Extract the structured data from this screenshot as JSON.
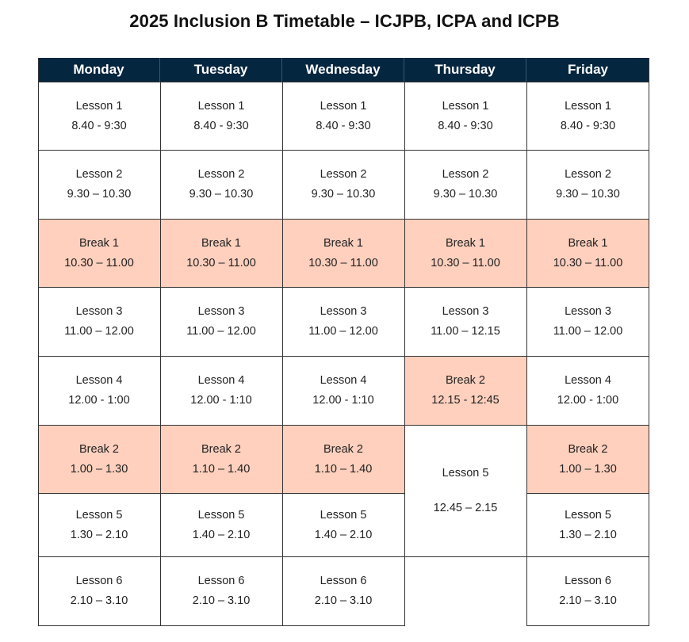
{
  "title": "2025 Inclusion B Timetable – ICJPB, ICPA and ICPB",
  "colors": {
    "header_bg": "#05263f",
    "header_text": "#ffffff",
    "break_bg": "#fed0bd",
    "grid_line": "#333333"
  },
  "days": [
    "Monday",
    "Tuesday",
    "Wednesday",
    "Thursday",
    "Friday"
  ],
  "monday": [
    {
      "name": "Lesson 1",
      "time": "8.40 - 9:30"
    },
    {
      "name": "Lesson 2",
      "time": "9.30 – 10.30"
    },
    {
      "name": "Break 1",
      "time": "10.30 – 11.00"
    },
    {
      "name": "Lesson 3",
      "time": "11.00 – 12.00"
    },
    {
      "name": "Lesson 4",
      "time": "12.00 - 1:00"
    },
    {
      "name": "Break 2",
      "time": "1.00 – 1.30"
    },
    {
      "name": "Lesson 5",
      "time": "1.30 – 2.10"
    },
    {
      "name": "Lesson 6",
      "time": "2.10 – 3.10"
    }
  ],
  "tuesday": [
    {
      "name": "Lesson 1",
      "time": "8.40 - 9:30"
    },
    {
      "name": "Lesson 2",
      "time": "9.30 – 10.30"
    },
    {
      "name": "Break 1",
      "time": "10.30 – 11.00"
    },
    {
      "name": "Lesson 3",
      "time": "11.00 – 12.00"
    },
    {
      "name": "Lesson 4",
      "time": "12.00 - 1:10"
    },
    {
      "name": "Break 2",
      "time": "1.10 – 1.40"
    },
    {
      "name": "Lesson 5",
      "time": "1.40 – 2.10"
    },
    {
      "name": "Lesson 6",
      "time": "2.10 – 3.10"
    }
  ],
  "wednesday": [
    {
      "name": "Lesson 1",
      "time": "8.40 - 9:30"
    },
    {
      "name": "Lesson 2",
      "time": "9.30 – 10.30"
    },
    {
      "name": "Break 1",
      "time": "10.30 – 11.00"
    },
    {
      "name": "Lesson 3",
      "time": "11.00 – 12.00"
    },
    {
      "name": "Lesson 4",
      "time": "12.00 - 1:10"
    },
    {
      "name": "Break 2",
      "time": "1.10 – 1.40"
    },
    {
      "name": "Lesson 5",
      "time": "1.40 – 2.10"
    },
    {
      "name": "Lesson 6",
      "time": "2.10 – 3.10"
    }
  ],
  "thursday": [
    {
      "name": "Lesson 1",
      "time": "8.40 - 9:30"
    },
    {
      "name": "Lesson 2",
      "time": "9.30 – 10.30"
    },
    {
      "name": "Break 1",
      "time": "10.30 – 11.00"
    },
    {
      "name": "Lesson 3",
      "time": "11.00 – 12.15"
    },
    {
      "name": "Break 2",
      "time": "12.15 - 12:45"
    },
    {
      "name": "Lesson 5",
      "time": "12.45 – 2.15"
    }
  ],
  "friday": [
    {
      "name": "Lesson 1",
      "time": "8.40 - 9:30"
    },
    {
      "name": "Lesson 2",
      "time": "9.30 – 10.30"
    },
    {
      "name": "Break 1",
      "time": "10.30 – 11.00"
    },
    {
      "name": "Lesson 3",
      "time": "11.00 – 12.00"
    },
    {
      "name": "Lesson 4",
      "time": "12.00 - 1:00"
    },
    {
      "name": "Break 2",
      "time": "1.00 – 1.30"
    },
    {
      "name": "Lesson 5",
      "time": "1.30 – 2.10"
    },
    {
      "name": "Lesson 6",
      "time": "2.10 – 3.10"
    }
  ]
}
